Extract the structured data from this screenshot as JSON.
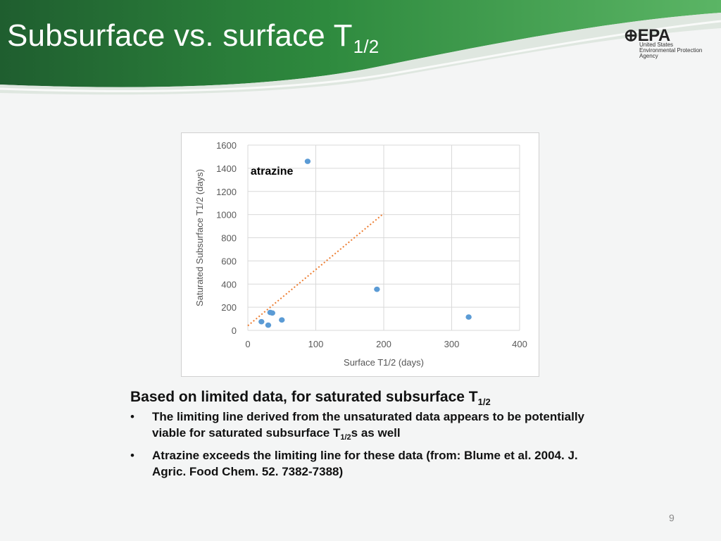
{
  "slide": {
    "title_main": "Subsurface vs. surface T",
    "title_sub": "1/2",
    "page_number": "9"
  },
  "logo": {
    "mark": "EPA",
    "line1": "United States",
    "line2": "Environmental Protection",
    "line3": "Agency"
  },
  "colors": {
    "header_green_dark": "#1c5a2c",
    "header_green": "#2e8a3e",
    "header_green_light": "#56b062",
    "point_blue": "#5b9bd5",
    "trend_orange": "#ed7d31"
  },
  "chart_data": {
    "type": "scatter",
    "xlabel": "Surface T1/2 (days)",
    "ylabel": "Saturated Subsurface T1/2 (days)",
    "xlim": [
      0,
      400
    ],
    "ylim": [
      0,
      1600
    ],
    "x_ticks": [
      0,
      100,
      200,
      300,
      400
    ],
    "y_ticks": [
      0,
      200,
      400,
      600,
      800,
      1000,
      1200,
      1400,
      1600
    ],
    "grid": true,
    "points": [
      {
        "x": 88,
        "y": 1460
      },
      {
        "x": 20,
        "y": 75
      },
      {
        "x": 30,
        "y": 45
      },
      {
        "x": 33,
        "y": 155
      },
      {
        "x": 36,
        "y": 150
      },
      {
        "x": 50,
        "y": 90
      },
      {
        "x": 190,
        "y": 355
      },
      {
        "x": 325,
        "y": 115
      }
    ],
    "trendline": {
      "x": [
        0,
        200
      ],
      "y": [
        40,
        1010
      ]
    },
    "annotation": {
      "text": "atrazine",
      "x": 60,
      "y": 1345
    }
  },
  "text": {
    "heading_main": "Based on limited data, for saturated subsurface T",
    "heading_sub": "1/2",
    "bullet_marker": "•",
    "bullet1_a": "The limiting line derived from the unsaturated data appears to be potentially viable for saturated subsurface T",
    "bullet1_sub": "1/2",
    "bullet1_b": "s as well",
    "bullet2": "Atrazine exceeds the limiting line for these data (from: Blume et al. 2004. J. Agric. Food Chem. 52. 7382-7388)"
  }
}
